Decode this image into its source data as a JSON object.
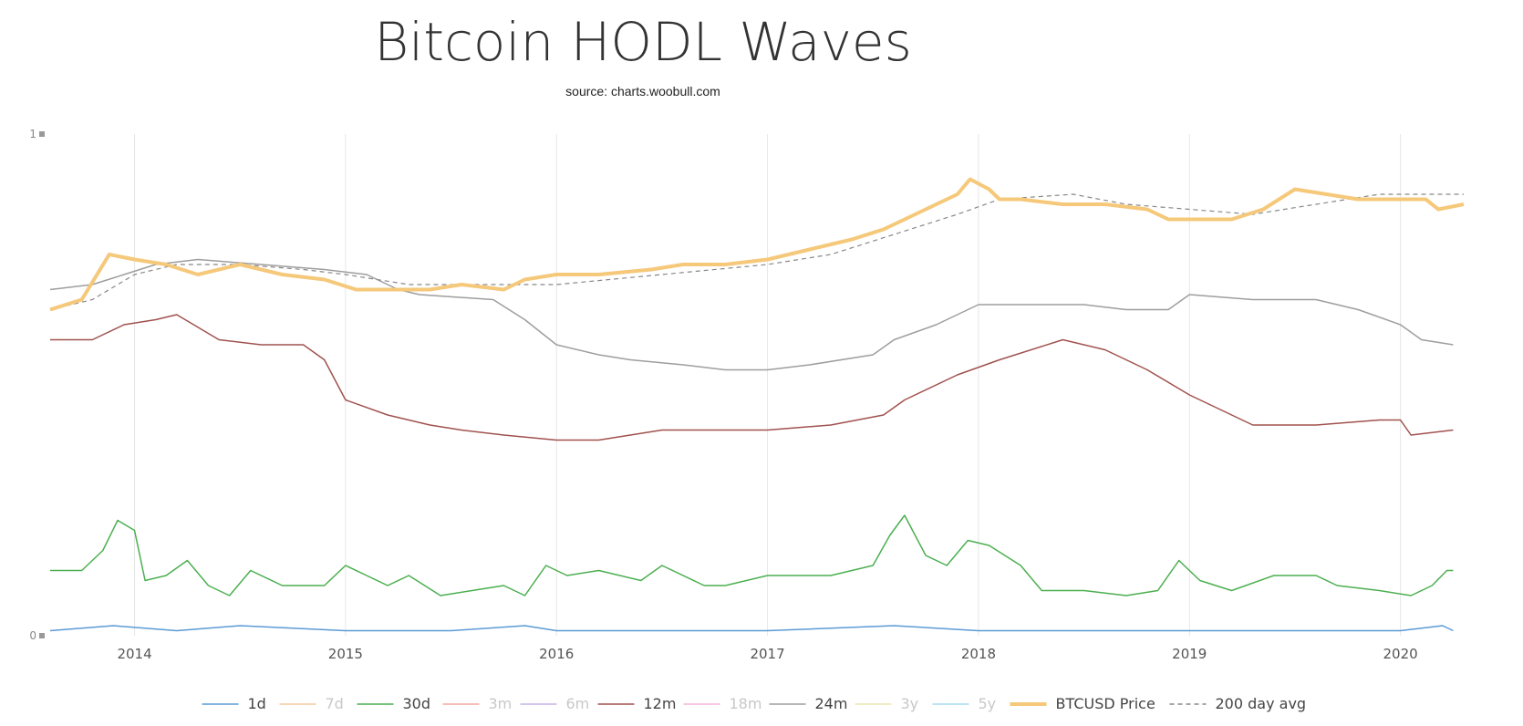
{
  "chart_data": {
    "type": "line",
    "title": "Bitcoin HODL Waves",
    "subtitle": "source: charts.woobull.com",
    "x_ticks": [
      "2014",
      "2015",
      "2016",
      "2017",
      "2018",
      "2019",
      "2020"
    ],
    "x_range": [
      2013.6,
      2020.3
    ],
    "y_ticks": [
      "0",
      "1"
    ],
    "y_range": [
      0,
      1
    ],
    "grid": true,
    "legend_position": "bottom",
    "colors": {
      "1d": "#5b9bd5",
      "7d": "#f6c8a0",
      "30d": "#4caf50",
      "3m": "#f2a9a0",
      "6m": "#c5b3e6",
      "12m": "#a0524e",
      "18m": "#f3b3dc",
      "24m": "#9e9e9e",
      "3y": "#ebe6b0",
      "5y": "#a6dcef",
      "price": "#f5c87a",
      "avg": "#888888"
    },
    "legend": [
      {
        "key": "1d",
        "label": "1d",
        "visible": true,
        "style": "line"
      },
      {
        "key": "7d",
        "label": "7d",
        "visible": false,
        "style": "line"
      },
      {
        "key": "30d",
        "label": "30d",
        "visible": true,
        "style": "line"
      },
      {
        "key": "3m",
        "label": "3m",
        "visible": false,
        "style": "line"
      },
      {
        "key": "6m",
        "label": "6m",
        "visible": false,
        "style": "line"
      },
      {
        "key": "12m",
        "label": "12m",
        "visible": true,
        "style": "line"
      },
      {
        "key": "18m",
        "label": "18m",
        "visible": false,
        "style": "line"
      },
      {
        "key": "24m",
        "label": "24m",
        "visible": true,
        "style": "line"
      },
      {
        "key": "3y",
        "label": "3y",
        "visible": false,
        "style": "line"
      },
      {
        "key": "5y",
        "label": "5y",
        "visible": false,
        "style": "line"
      },
      {
        "key": "price",
        "label": "BTCUSD Price",
        "visible": true,
        "style": "thick"
      },
      {
        "key": "avg",
        "label": "200 day avg",
        "visible": true,
        "style": "dash"
      }
    ],
    "series": [
      {
        "key": "price",
        "name": "BTCUSD Price",
        "points": [
          [
            2013.6,
            0.65
          ],
          [
            2013.75,
            0.67
          ],
          [
            2013.88,
            0.76
          ],
          [
            2014.0,
            0.75
          ],
          [
            2014.15,
            0.74
          ],
          [
            2014.3,
            0.72
          ],
          [
            2014.5,
            0.74
          ],
          [
            2014.7,
            0.72
          ],
          [
            2014.9,
            0.71
          ],
          [
            2015.05,
            0.69
          ],
          [
            2015.2,
            0.69
          ],
          [
            2015.4,
            0.69
          ],
          [
            2015.55,
            0.7
          ],
          [
            2015.75,
            0.69
          ],
          [
            2015.85,
            0.71
          ],
          [
            2016.0,
            0.72
          ],
          [
            2016.2,
            0.72
          ],
          [
            2016.45,
            0.73
          ],
          [
            2016.6,
            0.74
          ],
          [
            2016.8,
            0.74
          ],
          [
            2017.0,
            0.75
          ],
          [
            2017.2,
            0.77
          ],
          [
            2017.4,
            0.79
          ],
          [
            2017.55,
            0.81
          ],
          [
            2017.75,
            0.85
          ],
          [
            2017.9,
            0.88
          ],
          [
            2017.96,
            0.91
          ],
          [
            2018.05,
            0.89
          ],
          [
            2018.1,
            0.87
          ],
          [
            2018.2,
            0.87
          ],
          [
            2018.4,
            0.86
          ],
          [
            2018.6,
            0.86
          ],
          [
            2018.8,
            0.85
          ],
          [
            2018.9,
            0.83
          ],
          [
            2019.0,
            0.83
          ],
          [
            2019.2,
            0.83
          ],
          [
            2019.35,
            0.85
          ],
          [
            2019.5,
            0.89
          ],
          [
            2019.65,
            0.88
          ],
          [
            2019.8,
            0.87
          ],
          [
            2020.0,
            0.87
          ],
          [
            2020.12,
            0.87
          ],
          [
            2020.18,
            0.85
          ],
          [
            2020.3,
            0.86
          ]
        ]
      },
      {
        "key": "avg",
        "name": "200 day avg",
        "points": [
          [
            2013.6,
            0.65
          ],
          [
            2013.8,
            0.67
          ],
          [
            2014.0,
            0.72
          ],
          [
            2014.2,
            0.74
          ],
          [
            2014.5,
            0.74
          ],
          [
            2014.8,
            0.73
          ],
          [
            2015.0,
            0.72
          ],
          [
            2015.3,
            0.7
          ],
          [
            2015.6,
            0.7
          ],
          [
            2016.0,
            0.7
          ],
          [
            2016.5,
            0.72
          ],
          [
            2017.0,
            0.74
          ],
          [
            2017.3,
            0.76
          ],
          [
            2017.6,
            0.8
          ],
          [
            2017.9,
            0.84
          ],
          [
            2018.1,
            0.87
          ],
          [
            2018.45,
            0.88
          ],
          [
            2018.7,
            0.86
          ],
          [
            2019.0,
            0.85
          ],
          [
            2019.3,
            0.84
          ],
          [
            2019.6,
            0.86
          ],
          [
            2019.9,
            0.88
          ],
          [
            2020.3,
            0.88
          ]
        ]
      },
      {
        "key": "24m",
        "name": "24m",
        "points": [
          [
            2013.6,
            0.69
          ],
          [
            2013.8,
            0.7
          ],
          [
            2013.95,
            0.72
          ],
          [
            2014.1,
            0.74
          ],
          [
            2014.3,
            0.75
          ],
          [
            2014.6,
            0.74
          ],
          [
            2014.9,
            0.73
          ],
          [
            2015.1,
            0.72
          ],
          [
            2015.25,
            0.69
          ],
          [
            2015.35,
            0.68
          ],
          [
            2015.7,
            0.67
          ],
          [
            2015.85,
            0.63
          ],
          [
            2016.0,
            0.58
          ],
          [
            2016.2,
            0.56
          ],
          [
            2016.35,
            0.55
          ],
          [
            2016.6,
            0.54
          ],
          [
            2016.8,
            0.53
          ],
          [
            2017.0,
            0.53
          ],
          [
            2017.2,
            0.54
          ],
          [
            2017.5,
            0.56
          ],
          [
            2017.6,
            0.59
          ],
          [
            2017.8,
            0.62
          ],
          [
            2018.0,
            0.66
          ],
          [
            2018.2,
            0.66
          ],
          [
            2018.5,
            0.66
          ],
          [
            2018.7,
            0.65
          ],
          [
            2018.9,
            0.65
          ],
          [
            2019.0,
            0.68
          ],
          [
            2019.3,
            0.67
          ],
          [
            2019.6,
            0.67
          ],
          [
            2019.8,
            0.65
          ],
          [
            2020.0,
            0.62
          ],
          [
            2020.1,
            0.59
          ],
          [
            2020.25,
            0.58
          ]
        ]
      },
      {
        "key": "12m",
        "name": "12m",
        "points": [
          [
            2013.6,
            0.59
          ],
          [
            2013.8,
            0.59
          ],
          [
            2013.95,
            0.62
          ],
          [
            2014.1,
            0.63
          ],
          [
            2014.2,
            0.64
          ],
          [
            2014.4,
            0.59
          ],
          [
            2014.6,
            0.58
          ],
          [
            2014.8,
            0.58
          ],
          [
            2014.9,
            0.55
          ],
          [
            2015.0,
            0.47
          ],
          [
            2015.2,
            0.44
          ],
          [
            2015.4,
            0.42
          ],
          [
            2015.55,
            0.41
          ],
          [
            2015.75,
            0.4
          ],
          [
            2016.0,
            0.39
          ],
          [
            2016.2,
            0.39
          ],
          [
            2016.5,
            0.41
          ],
          [
            2016.8,
            0.41
          ],
          [
            2017.0,
            0.41
          ],
          [
            2017.3,
            0.42
          ],
          [
            2017.55,
            0.44
          ],
          [
            2017.65,
            0.47
          ],
          [
            2017.9,
            0.52
          ],
          [
            2018.1,
            0.55
          ],
          [
            2018.4,
            0.59
          ],
          [
            2018.6,
            0.57
          ],
          [
            2018.8,
            0.53
          ],
          [
            2019.0,
            0.48
          ],
          [
            2019.15,
            0.45
          ],
          [
            2019.3,
            0.42
          ],
          [
            2019.6,
            0.42
          ],
          [
            2019.9,
            0.43
          ],
          [
            2020.0,
            0.43
          ],
          [
            2020.05,
            0.4
          ],
          [
            2020.25,
            0.41
          ]
        ]
      },
      {
        "key": "30d",
        "name": "30d",
        "points": [
          [
            2013.6,
            0.13
          ],
          [
            2013.75,
            0.13
          ],
          [
            2013.85,
            0.17
          ],
          [
            2013.92,
            0.23
          ],
          [
            2014.0,
            0.21
          ],
          [
            2014.05,
            0.11
          ],
          [
            2014.15,
            0.12
          ],
          [
            2014.25,
            0.15
          ],
          [
            2014.35,
            0.1
          ],
          [
            2014.45,
            0.08
          ],
          [
            2014.55,
            0.13
          ],
          [
            2014.7,
            0.1
          ],
          [
            2014.9,
            0.1
          ],
          [
            2015.0,
            0.14
          ],
          [
            2015.1,
            0.12
          ],
          [
            2015.2,
            0.1
          ],
          [
            2015.3,
            0.12
          ],
          [
            2015.45,
            0.08
          ],
          [
            2015.6,
            0.09
          ],
          [
            2015.75,
            0.1
          ],
          [
            2015.85,
            0.08
          ],
          [
            2015.95,
            0.14
          ],
          [
            2016.05,
            0.12
          ],
          [
            2016.2,
            0.13
          ],
          [
            2016.4,
            0.11
          ],
          [
            2016.5,
            0.14
          ],
          [
            2016.7,
            0.1
          ],
          [
            2016.8,
            0.1
          ],
          [
            2017.0,
            0.12
          ],
          [
            2017.2,
            0.12
          ],
          [
            2017.3,
            0.12
          ],
          [
            2017.5,
            0.14
          ],
          [
            2017.58,
            0.2
          ],
          [
            2017.65,
            0.24
          ],
          [
            2017.75,
            0.16
          ],
          [
            2017.85,
            0.14
          ],
          [
            2017.95,
            0.19
          ],
          [
            2018.05,
            0.18
          ],
          [
            2018.2,
            0.14
          ],
          [
            2018.3,
            0.09
          ],
          [
            2018.5,
            0.09
          ],
          [
            2018.7,
            0.08
          ],
          [
            2018.85,
            0.09
          ],
          [
            2018.95,
            0.15
          ],
          [
            2019.05,
            0.11
          ],
          [
            2019.2,
            0.09
          ],
          [
            2019.4,
            0.12
          ],
          [
            2019.6,
            0.12
          ],
          [
            2019.7,
            0.1
          ],
          [
            2019.9,
            0.09
          ],
          [
            2020.05,
            0.08
          ],
          [
            2020.15,
            0.1
          ],
          [
            2020.22,
            0.13
          ],
          [
            2020.25,
            0.13
          ]
        ]
      },
      {
        "key": "1d",
        "name": "1d",
        "points": [
          [
            2013.6,
            0.01
          ],
          [
            2013.9,
            0.02
          ],
          [
            2014.2,
            0.01
          ],
          [
            2014.5,
            0.02
          ],
          [
            2015.0,
            0.01
          ],
          [
            2015.5,
            0.01
          ],
          [
            2015.85,
            0.02
          ],
          [
            2016.0,
            0.01
          ],
          [
            2016.5,
            0.01
          ],
          [
            2017.0,
            0.01
          ],
          [
            2017.6,
            0.02
          ],
          [
            2018.0,
            0.01
          ],
          [
            2018.5,
            0.01
          ],
          [
            2019.0,
            0.01
          ],
          [
            2019.5,
            0.01
          ],
          [
            2020.0,
            0.01
          ],
          [
            2020.2,
            0.02
          ],
          [
            2020.25,
            0.01
          ]
        ]
      }
    ]
  }
}
